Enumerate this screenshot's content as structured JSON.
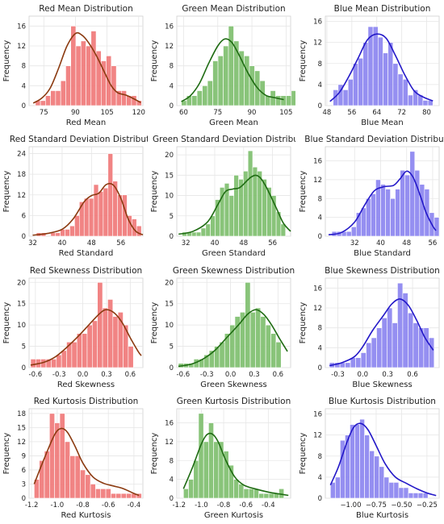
{
  "colors": {
    "red_bar": "#f07a7a",
    "red_line": "#8b3a10",
    "green_bar": "#7fbf6f",
    "green_line": "#1e6b12",
    "blue_bar": "#8c86f0",
    "blue_line": "#2318c8",
    "plot_bg": "#ffffff",
    "grid": "#e6e6e6"
  },
  "chart_data": [
    {
      "type": "bar",
      "channel": "red",
      "title": "Red Mean Distribution",
      "xlabel": "Red Mean",
      "ylabel": "Frequency",
      "xlim": [
        68,
        122
      ],
      "ylim": [
        0,
        18
      ],
      "xticks": [
        75,
        90,
        105,
        120
      ],
      "xtick_labels": [
        "75",
        "90",
        "105",
        "120"
      ],
      "yticks": [
        0,
        4,
        8,
        12,
        16
      ],
      "ytick_labels": [
        "0",
        "4",
        "8",
        "12",
        "16"
      ],
      "bin_start": 71,
      "bin_width": 2.4,
      "values": [
        1,
        1,
        2,
        3,
        3,
        5,
        8,
        16,
        12,
        13,
        12,
        15,
        11,
        9,
        10,
        8,
        3,
        3,
        2,
        2,
        1
      ],
      "kde": [
        [
          70,
          0.5
        ],
        [
          74,
          1.5
        ],
        [
          78,
          3.5
        ],
        [
          82,
          7.5
        ],
        [
          86,
          12
        ],
        [
          90,
          14.5
        ],
        [
          93,
          14.2
        ],
        [
          96,
          12.8
        ],
        [
          100,
          10
        ],
        [
          104,
          6.5
        ],
        [
          107,
          4
        ],
        [
          110,
          2.6
        ],
        [
          114,
          2.1
        ],
        [
          118,
          1.3
        ],
        [
          121,
          0.6
        ]
      ]
    },
    {
      "type": "bar",
      "channel": "green",
      "title": "Green Mean Distribution",
      "xlabel": "Green Mean",
      "ylabel": "Frequency",
      "xlim": [
        57,
        107
      ],
      "ylim": [
        0,
        18
      ],
      "xticks": [
        60,
        75,
        90,
        105
      ],
      "xtick_labels": [
        "60",
        "75",
        "90",
        "105"
      ],
      "yticks": [
        0,
        4,
        8,
        12,
        16
      ],
      "ytick_labels": [
        "0",
        "4",
        "8",
        "12",
        "16"
      ],
      "bin_start": 59,
      "bin_width": 2.3,
      "values": [
        1,
        2,
        2,
        3,
        4,
        5,
        9,
        10,
        12,
        16,
        13,
        11,
        10,
        8,
        7,
        5,
        2,
        3,
        2,
        2,
        2,
        3
      ],
      "kde": [
        [
          59,
          0.8
        ],
        [
          63,
          2
        ],
        [
          67,
          4.5
        ],
        [
          71,
          8.5
        ],
        [
          75,
          12
        ],
        [
          78,
          13.4
        ],
        [
          81,
          12.8
        ],
        [
          84,
          10.5
        ],
        [
          88,
          6.8
        ],
        [
          92,
          3.8
        ],
        [
          96,
          2.1
        ],
        [
          100,
          1.6
        ],
        [
          104,
          1.2
        ]
      ]
    },
    {
      "type": "bar",
      "channel": "blue",
      "title": "Blue Mean Distribution",
      "xlabel": "Blue Mean",
      "ylabel": "Frequency",
      "xlim": [
        47.5,
        84
      ],
      "ylim": [
        0,
        17
      ],
      "xticks": [
        48,
        56,
        64,
        72,
        80
      ],
      "xtick_labels": [
        "48",
        "56",
        "64",
        "72",
        "80"
      ],
      "yticks": [
        0,
        4,
        8,
        12,
        16
      ],
      "ytick_labels": [
        "0",
        "4",
        "8",
        "12",
        "16"
      ],
      "bin_start": 50,
      "bin_width": 1.6,
      "values": [
        3,
        4,
        3,
        5,
        8,
        9,
        12,
        15,
        15,
        13,
        10,
        12,
        8,
        6,
        5,
        2,
        3,
        2,
        1,
        1
      ],
      "kde": [
        [
          49,
          0.8
        ],
        [
          52,
          2.5
        ],
        [
          55,
          5.5
        ],
        [
          58,
          9
        ],
        [
          61,
          12.5
        ],
        [
          64,
          13.6
        ],
        [
          67,
          12.8
        ],
        [
          70,
          9.5
        ],
        [
          73,
          5.8
        ],
        [
          76,
          2.8
        ],
        [
          79,
          1.6
        ],
        [
          82,
          0.9
        ]
      ]
    },
    {
      "type": "bar",
      "channel": "red",
      "title": "Red Standard Deviation Distribution",
      "xlabel": "Red Standard",
      "ylabel": "Frequency",
      "xlim": [
        31,
        62
      ],
      "ylim": [
        0,
        26
      ],
      "xticks": [
        32,
        40,
        48,
        56
      ],
      "xtick_labels": [
        "32",
        "40",
        "48",
        "56"
      ],
      "yticks": [
        0,
        6,
        12,
        18,
        24
      ],
      "ytick_labels": [
        "0",
        "6",
        "12",
        "18",
        "24"
      ],
      "bin_start": 33,
      "bin_width": 1.3,
      "values": [
        1,
        1,
        0,
        1,
        1,
        2,
        2,
        3,
        6,
        10,
        11,
        11,
        15,
        13,
        14,
        24,
        16,
        12,
        12,
        6,
        5,
        3
      ],
      "kde": [
        [
          32,
          0.3
        ],
        [
          36,
          0.8
        ],
        [
          40,
          2
        ],
        [
          43,
          5
        ],
        [
          46,
          10
        ],
        [
          48,
          11.8
        ],
        [
          50,
          12.5
        ],
        [
          52,
          15
        ],
        [
          54,
          14.8
        ],
        [
          56,
          11
        ],
        [
          58,
          5
        ],
        [
          60,
          1.5
        ],
        [
          62,
          0.4
        ]
      ]
    },
    {
      "type": "bar",
      "channel": "green",
      "title": "Green Standard Deviation Distribution",
      "xlabel": "Green Standard",
      "ylabel": "Frequency",
      "xlim": [
        29.5,
        61
      ],
      "ylim": [
        0,
        22
      ],
      "xticks": [
        32,
        40,
        48,
        56
      ],
      "xtick_labels": [
        "32",
        "40",
        "48",
        "56"
      ],
      "yticks": [
        0,
        5,
        10,
        15,
        20
      ],
      "ytick_labels": [
        "0",
        "5",
        "10",
        "15",
        "20"
      ],
      "bin_start": 31,
      "bin_width": 1.3,
      "values": [
        1,
        1,
        1,
        1,
        2,
        3,
        5,
        9,
        12,
        13,
        10,
        15,
        14,
        16,
        21,
        17,
        16,
        14,
        12,
        10,
        6,
        3
      ],
      "kde": [
        [
          30,
          0.5
        ],
        [
          34,
          1.2
        ],
        [
          38,
          3.5
        ],
        [
          41,
          8
        ],
        [
          43,
          11
        ],
        [
          45,
          11.6
        ],
        [
          47,
          12
        ],
        [
          50,
          14.5
        ],
        [
          52,
          14.8
        ],
        [
          54,
          12.5
        ],
        [
          57,
          7
        ],
        [
          59,
          3.2
        ],
        [
          61,
          1.2
        ]
      ]
    },
    {
      "type": "bar",
      "channel": "blue",
      "title": "Blue Standard Deviation Distribution",
      "xlabel": "Blue Standard",
      "ylabel": "Frequency",
      "xlim": [
        23,
        58
      ],
      "ylim": [
        0,
        19
      ],
      "xticks": [
        32,
        40,
        48,
        56
      ],
      "xtick_labels": [
        "32",
        "40",
        "48",
        "56"
      ],
      "yticks": [
        0,
        4,
        8,
        12,
        16
      ],
      "ytick_labels": [
        "0",
        "4",
        "8",
        "12",
        "16"
      ],
      "bin_start": 25,
      "bin_width": 1.5,
      "values": [
        1,
        1,
        1,
        1,
        2,
        5,
        6,
        8,
        9,
        12,
        11,
        10,
        8,
        10,
        14,
        13,
        18,
        14,
        11,
        10,
        5,
        4
      ],
      "kde": [
        [
          24,
          0.3
        ],
        [
          28,
          0.8
        ],
        [
          32,
          3
        ],
        [
          35,
          6.5
        ],
        [
          38,
          9.6
        ],
        [
          41,
          10.5
        ],
        [
          44,
          10.8
        ],
        [
          46,
          12.2
        ],
        [
          48,
          13.8
        ],
        [
          50,
          12.5
        ],
        [
          52,
          9
        ],
        [
          54,
          5
        ],
        [
          56,
          2.2
        ],
        [
          57,
          1.2
        ]
      ]
    },
    {
      "type": "bar",
      "channel": "red",
      "title": "Red Skewness Distribution",
      "xlabel": "Red Skewness",
      "ylabel": "Frequency",
      "xlim": [
        -0.68,
        0.76
      ],
      "ylim": [
        0,
        21
      ],
      "xticks": [
        -0.6,
        -0.3,
        0.0,
        0.3,
        0.6
      ],
      "xtick_labels": [
        "-0.6",
        "-0.3",
        "0.0",
        "0.3",
        "0.6"
      ],
      "yticks": [
        0,
        5,
        10,
        15,
        20
      ],
      "ytick_labels": [
        "0",
        "5",
        "10",
        "15",
        "20"
      ],
      "bin_start": -0.66,
      "bin_width": 0.065,
      "values": [
        2,
        2,
        2,
        2,
        2,
        3,
        4,
        6,
        6,
        8,
        8,
        10,
        11,
        20,
        14,
        16,
        12,
        13,
        10,
        5
      ],
      "kde": [
        [
          -0.66,
          0.6
        ],
        [
          -0.5,
          1.2
        ],
        [
          -0.35,
          2.5
        ],
        [
          -0.2,
          4.8
        ],
        [
          -0.05,
          7.5
        ],
        [
          0.1,
          10.5
        ],
        [
          0.22,
          12.8
        ],
        [
          0.3,
          13.6
        ],
        [
          0.4,
          12.8
        ],
        [
          0.5,
          10.5
        ],
        [
          0.6,
          7
        ],
        [
          0.7,
          3.8
        ],
        [
          0.74,
          2.8
        ]
      ]
    },
    {
      "type": "bar",
      "channel": "green",
      "title": "Green Skewness Distribution",
      "xlabel": "Green Skewness",
      "ylabel": "Frequency",
      "xlim": [
        -0.68,
        0.76
      ],
      "ylim": [
        0,
        21
      ],
      "xticks": [
        -0.6,
        -0.3,
        0.0,
        0.3,
        0.6
      ],
      "xtick_labels": [
        "-0.6",
        "-0.3",
        "0.0",
        "0.3",
        "0.6"
      ],
      "yticks": [
        0,
        5,
        10,
        15,
        20
      ],
      "ytick_labels": [
        "0",
        "5",
        "10",
        "15",
        "20"
      ],
      "bin_start": -0.66,
      "bin_width": 0.065,
      "values": [
        1,
        1,
        1,
        2,
        2,
        3,
        4,
        5,
        6,
        8,
        10,
        12,
        13,
        20,
        13,
        14,
        12,
        10,
        8,
        6
      ],
      "kde": [
        [
          -0.66,
          0.3
        ],
        [
          -0.5,
          0.8
        ],
        [
          -0.35,
          2
        ],
        [
          -0.2,
          4
        ],
        [
          -0.05,
          7
        ],
        [
          0.1,
          10
        ],
        [
          0.22,
          12.6
        ],
        [
          0.32,
          13.6
        ],
        [
          0.42,
          12.5
        ],
        [
          0.52,
          10
        ],
        [
          0.62,
          6.8
        ],
        [
          0.72,
          3.8
        ]
      ]
    },
    {
      "type": "bar",
      "channel": "blue",
      "title": "Blue Skewness Distribution",
      "xlabel": "Blue Skewness",
      "ylabel": "Frequency",
      "xlim": [
        -0.45,
        0.92
      ],
      "ylim": [
        0,
        18
      ],
      "xticks": [
        -0.3,
        0.0,
        0.3,
        0.6
      ],
      "xtick_labels": [
        "-0.3",
        "0.0",
        "0.3",
        "0.6"
      ],
      "yticks": [
        0,
        4,
        8,
        12,
        16
      ],
      "ytick_labels": [
        "0",
        "4",
        "8",
        "12",
        "16"
      ],
      "bin_start": -0.4,
      "bin_width": 0.063,
      "values": [
        1,
        1,
        1,
        1,
        2,
        2,
        3,
        5,
        6,
        8,
        10,
        12,
        9,
        17,
        15,
        11,
        9,
        8,
        8,
        6
      ],
      "kde": [
        [
          -0.4,
          0.4
        ],
        [
          -0.25,
          1
        ],
        [
          -0.1,
          2.2
        ],
        [
          0.0,
          4.2
        ],
        [
          0.12,
          7.5
        ],
        [
          0.25,
          10.5
        ],
        [
          0.35,
          12.8
        ],
        [
          0.45,
          13.8
        ],
        [
          0.55,
          12.5
        ],
        [
          0.65,
          9.5
        ],
        [
          0.75,
          6
        ],
        [
          0.85,
          3.5
        ]
      ]
    },
    {
      "type": "bar",
      "channel": "red",
      "title": "Red Kurtosis Distribution",
      "xlabel": "Red Kurtosis",
      "ylabel": "Frequency",
      "xlim": [
        -1.22,
        -0.33
      ],
      "ylim": [
        0,
        19
      ],
      "xticks": [
        -1.2,
        -1.0,
        -0.8,
        -0.6,
        -0.4
      ],
      "xtick_labels": [
        "-1.2",
        "-1.0",
        "-0.8",
        "-0.6",
        "-0.4"
      ],
      "yticks": [
        0,
        3,
        6,
        9,
        12,
        15,
        18
      ],
      "ytick_labels": [
        "0",
        "3",
        "6",
        "9",
        "12",
        "15",
        "18"
      ],
      "bin_start": -1.18,
      "bin_width": 0.04,
      "values": [
        4,
        8,
        10,
        18,
        16,
        18,
        12,
        9,
        9,
        6,
        5,
        3,
        2,
        2,
        2,
        1,
        1,
        1,
        1,
        1,
        1
      ],
      "kde": [
        [
          -1.18,
          3
        ],
        [
          -1.1,
          8.5
        ],
        [
          -1.02,
          13.5
        ],
        [
          -0.97,
          14.8
        ],
        [
          -0.92,
          14
        ],
        [
          -0.86,
          11
        ],
        [
          -0.8,
          7.5
        ],
        [
          -0.72,
          4.5
        ],
        [
          -0.64,
          3.2
        ],
        [
          -0.56,
          2.6
        ],
        [
          -0.48,
          2
        ],
        [
          -0.4,
          1
        ],
        [
          -0.36,
          0.6
        ]
      ]
    },
    {
      "type": "bar",
      "channel": "green",
      "title": "Green Kurtosis Distribution",
      "xlabel": "Green Kurtosis",
      "ylabel": "Frequency",
      "xlim": [
        -1.22,
        -0.2
      ],
      "ylim": [
        0,
        19
      ],
      "xticks": [
        -1.2,
        -1.0,
        -0.8,
        -0.6,
        -0.4
      ],
      "xtick_labels": [
        "-1.2",
        "-1.0",
        "-0.8",
        "-0.6",
        "-0.4"
      ],
      "yticks": [
        0,
        4,
        8,
        12,
        16
      ],
      "ytick_labels": [
        "0",
        "4",
        "8",
        "12",
        "16"
      ],
      "bin_start": -1.16,
      "bin_width": 0.045,
      "values": [
        2,
        4,
        8,
        18,
        12,
        16,
        12,
        12,
        10,
        7,
        4,
        3,
        2,
        2,
        2,
        1,
        1,
        1,
        1,
        2
      ],
      "kde": [
        [
          -1.16,
          2
        ],
        [
          -1.08,
          6.5
        ],
        [
          -1.0,
          11.5
        ],
        [
          -0.95,
          13.5
        ],
        [
          -0.9,
          13.6
        ],
        [
          -0.85,
          12
        ],
        [
          -0.78,
          8
        ],
        [
          -0.7,
          4.5
        ],
        [
          -0.62,
          2.8
        ],
        [
          -0.52,
          2
        ],
        [
          -0.4,
          1.3
        ],
        [
          -0.3,
          0.9
        ],
        [
          -0.22,
          0.6
        ]
      ]
    },
    {
      "type": "bar",
      "channel": "blue",
      "title": "Blue Kurtosis Distribution",
      "xlabel": "Blue Kurtosis",
      "ylabel": "Frequency",
      "xlim": [
        -1.25,
        -0.13
      ],
      "ylim": [
        0,
        17
      ],
      "xticks": [
        -1.0,
        -0.75,
        -0.5,
        -0.25
      ],
      "xtick_labels": [
        "−1.00",
        "−0.75",
        "−0.50",
        "−0.25"
      ],
      "yticks": [
        0,
        4,
        8,
        12,
        16
      ],
      "ytick_labels": [
        "0",
        "4",
        "8",
        "12",
        "16"
      ],
      "bin_start": -1.2,
      "bin_width": 0.048,
      "values": [
        3,
        4,
        11,
        12,
        14,
        14,
        15,
        12,
        9,
        8,
        6,
        4,
        3,
        3,
        2,
        2,
        1,
        1,
        1,
        1
      ],
      "kde": [
        [
          -1.2,
          2.5
        ],
        [
          -1.12,
          6
        ],
        [
          -1.04,
          10.5
        ],
        [
          -0.97,
          13.5
        ],
        [
          -0.9,
          14.2
        ],
        [
          -0.83,
          13
        ],
        [
          -0.75,
          10
        ],
        [
          -0.66,
          6.5
        ],
        [
          -0.56,
          4
        ],
        [
          -0.45,
          2.8
        ],
        [
          -0.35,
          1.8
        ],
        [
          -0.25,
          1
        ],
        [
          -0.16,
          0.5
        ]
      ]
    }
  ]
}
